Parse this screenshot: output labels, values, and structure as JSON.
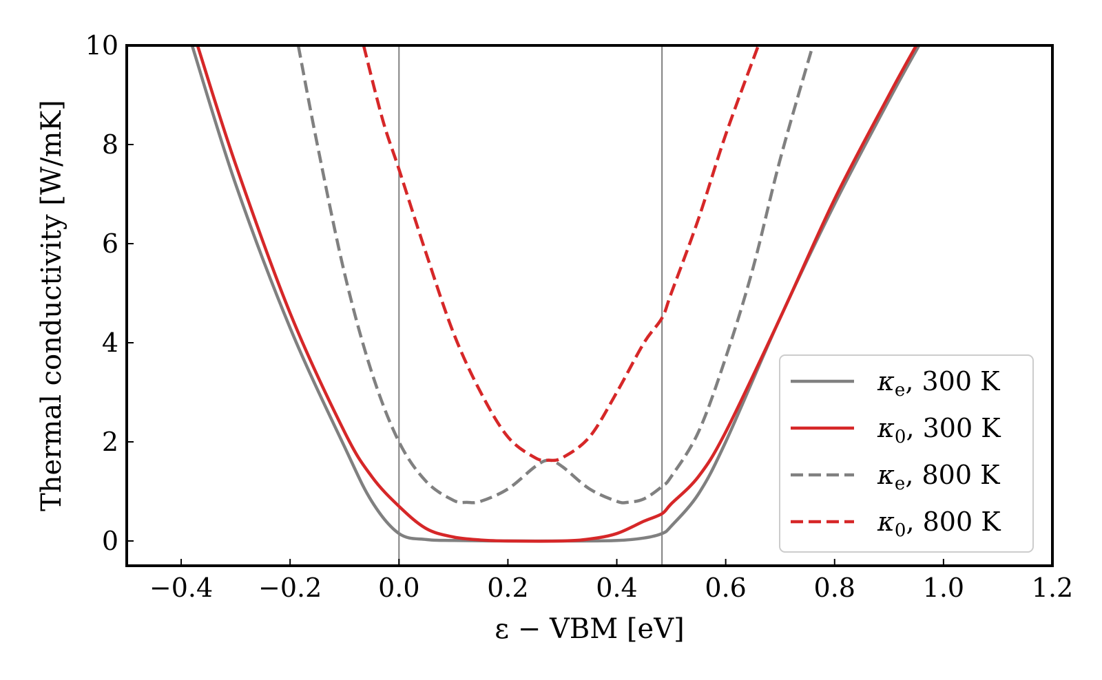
{
  "chart_data": {
    "type": "line",
    "title": "",
    "xlabel": "ε − VBM [eV]",
    "ylabel": "Thermal conductivity [W/mK]",
    "xlim": [
      -0.5,
      1.2
    ],
    "ylim": [
      -0.5,
      10
    ],
    "xticks": [
      -0.4,
      -0.2,
      0.0,
      0.2,
      0.4,
      0.6,
      0.8,
      1.0,
      1.2
    ],
    "xtick_labels": [
      "−0.4",
      "−0.2",
      "0.0",
      "0.2",
      "0.4",
      "0.6",
      "0.8",
      "1.0",
      "1.2"
    ],
    "yticks": [
      0,
      2,
      4,
      6,
      8,
      10
    ],
    "ytick_labels": [
      "0",
      "2",
      "4",
      "6",
      "8",
      "10"
    ],
    "vlines": [
      0.0,
      0.483
    ],
    "vline_color": "#808080",
    "grid": false,
    "legend_position": "lower-right",
    "series": [
      {
        "name": "κe, 300 K",
        "sym": "κ",
        "sub": "e",
        "rest": ", 300 K",
        "color": "#808080",
        "dash": false,
        "x": [
          -0.38,
          -0.3,
          -0.2,
          -0.1,
          -0.05,
          0.0,
          0.05,
          0.1,
          0.2,
          0.3,
          0.4,
          0.45,
          0.483,
          0.5,
          0.55,
          0.6,
          0.7,
          0.8,
          0.9,
          0.955
        ],
        "y": [
          10.0,
          7.2,
          4.3,
          1.9,
          0.8,
          0.15,
          0.03,
          0.01,
          0.0,
          0.0,
          0.01,
          0.06,
          0.15,
          0.3,
          0.95,
          2.0,
          4.5,
          6.8,
          8.9,
          10.0
        ]
      },
      {
        "name": "κ0, 300 K",
        "sym": "κ",
        "sub": "0",
        "rest": ", 300 K",
        "color": "#d62728",
        "dash": false,
        "x": [
          -0.37,
          -0.3,
          -0.2,
          -0.1,
          -0.05,
          0.0,
          0.05,
          0.1,
          0.15,
          0.2,
          0.3,
          0.35,
          0.4,
          0.45,
          0.483,
          0.5,
          0.55,
          0.6,
          0.7,
          0.8,
          0.9,
          0.95
        ],
        "y": [
          10.0,
          7.6,
          4.6,
          2.2,
          1.3,
          0.7,
          0.25,
          0.08,
          0.02,
          0.0,
          0.0,
          0.04,
          0.15,
          0.4,
          0.55,
          0.75,
          1.3,
          2.2,
          4.5,
          6.9,
          9.0,
          10.0
        ]
      },
      {
        "name": "κe, 800 K",
        "sym": "κ",
        "sub": "e",
        "rest": ", 800 K",
        "color": "#808080",
        "dash": true,
        "x": [
          -0.185,
          -0.15,
          -0.1,
          -0.05,
          0.0,
          0.05,
          0.1,
          0.125,
          0.15,
          0.2,
          0.25,
          0.275,
          0.3,
          0.35,
          0.4,
          0.42,
          0.45,
          0.483,
          0.5,
          0.55,
          0.6,
          0.65,
          0.7,
          0.76
        ],
        "y": [
          10.0,
          8.0,
          5.4,
          3.4,
          2.0,
          1.2,
          0.82,
          0.78,
          0.8,
          1.05,
          1.5,
          1.63,
          1.5,
          1.05,
          0.8,
          0.78,
          0.85,
          1.1,
          1.3,
          2.2,
          3.7,
          5.5,
          7.7,
          10.0
        ]
      },
      {
        "name": "κ0, 800 K",
        "sym": "κ",
        "sub": "0",
        "rest": ", 800 K",
        "color": "#d62728",
        "dash": true,
        "x": [
          -0.065,
          -0.03,
          0.0,
          0.05,
          0.1,
          0.15,
          0.2,
          0.25,
          0.275,
          0.3,
          0.35,
          0.4,
          0.45,
          0.483,
          0.5,
          0.55,
          0.6,
          0.66
        ],
        "y": [
          10.0,
          8.5,
          7.5,
          5.8,
          4.2,
          3.0,
          2.1,
          1.68,
          1.63,
          1.68,
          2.1,
          3.0,
          4.0,
          4.5,
          5.0,
          6.5,
          8.2,
          10.0
        ]
      }
    ]
  }
}
